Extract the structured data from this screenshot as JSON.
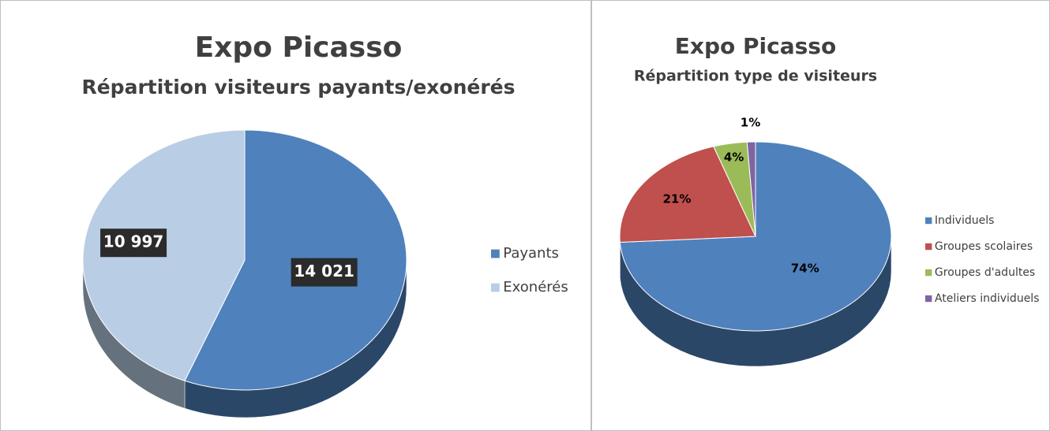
{
  "chart_data": [
    {
      "type": "pie",
      "title": "Expo Picasso",
      "subtitle": "Répartition visiteurs payants/exonérés",
      "categories": [
        "Payants",
        "Exonérés"
      ],
      "values": [
        14021,
        10997
      ],
      "value_labels": [
        "14 021",
        "10 997"
      ],
      "colors": [
        "#4f81bd",
        "#b9cde5"
      ],
      "legend": "right"
    },
    {
      "type": "pie",
      "title": "Expo Picasso",
      "subtitle": "Répartition type de visiteurs",
      "categories": [
        "Individuels",
        "Groupes scolaires",
        "Groupes d'adultes",
        "Ateliers individuels"
      ],
      "values": [
        74,
        21,
        4,
        1
      ],
      "value_labels": [
        "74%",
        "21%",
        "4%",
        "1%"
      ],
      "colors": [
        "#4f81bd",
        "#c0504d",
        "#9bbb59",
        "#8064a2"
      ],
      "legend": "right"
    }
  ]
}
